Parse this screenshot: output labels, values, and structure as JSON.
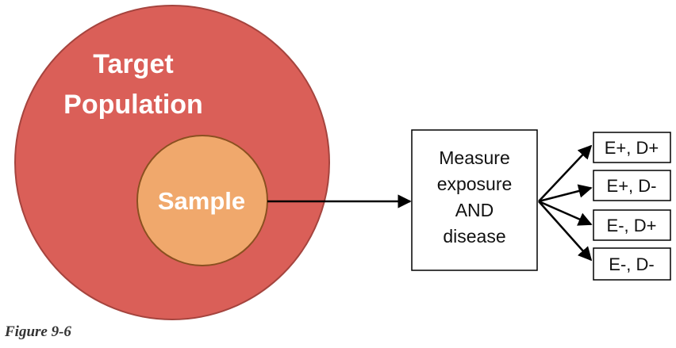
{
  "colors": {
    "outer_circle": "#da5f58",
    "inner_circle": "#f0a86c",
    "line": "#000000"
  },
  "outer": {
    "line1": "Target",
    "line2": "Population"
  },
  "sample": {
    "label": "Sample"
  },
  "measure": {
    "line1": "Measure",
    "line2": "exposure",
    "line3": "AND",
    "line4": "disease"
  },
  "outcomes": [
    "E+, D+",
    "E+, D-",
    "E-, D+",
    "E-, D-"
  ],
  "caption": "Figure 9-6"
}
